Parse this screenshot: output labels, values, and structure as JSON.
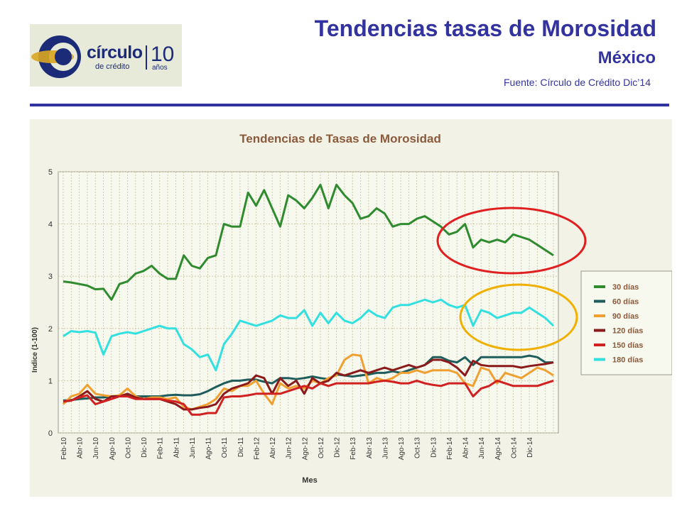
{
  "slide": {
    "title": "Tendencias tasas de Morosidad",
    "subtitle": "México",
    "source": "Fuente: Círculo de Crédito Dic’14"
  },
  "logo": {
    "name": "círculo",
    "sub": "de crédito",
    "number": "10",
    "years": "años"
  },
  "chart_data": {
    "type": "line",
    "title": "Tendencias de Tasas de Morosidad",
    "xlabel": "Mes",
    "ylabel": "Indice (1-100)",
    "ylim": [
      0,
      5
    ],
    "yticks": [
      0,
      1,
      2,
      3,
      4,
      5
    ],
    "grid": true,
    "legend_position": "right",
    "x_tick_labels": [
      "Feb-10",
      "Abr-10",
      "Jun-10",
      "Ago-10",
      "Oct-10",
      "Dic-10",
      "Feb-11",
      "Abr-11",
      "Jun-11",
      "Ago-11",
      "Oct-11",
      "Dic-11",
      "Feb-12",
      "Abr-12",
      "Jun-12",
      "Ago-12",
      "Oct-12",
      "Dic-12",
      "Feb-13",
      "Abr-13",
      "Jun-13",
      "Ago-13",
      "Oct-13",
      "Dic-13",
      "Feb-14",
      "Abr-14",
      "Jun-14",
      "Ago-14",
      "Oct-14",
      "Dic-14"
    ],
    "series": [
      {
        "name": "30 días",
        "color": "#2e8b2e",
        "values": [
          2.9,
          2.88,
          2.85,
          2.82,
          2.75,
          2.76,
          2.55,
          2.85,
          2.9,
          3.05,
          3.1,
          3.2,
          3.05,
          2.95,
          2.95,
          3.4,
          3.2,
          3.15,
          3.35,
          3.4,
          4.0,
          3.95,
          3.95,
          4.6,
          4.35,
          4.65,
          4.3,
          3.95,
          4.55,
          4.45,
          4.3,
          4.5,
          4.75,
          4.3,
          4.75,
          4.55,
          4.4,
          4.1,
          4.15,
          4.3,
          4.2,
          3.95,
          4.0,
          4.0,
          4.1,
          4.15,
          4.05,
          3.95,
          3.8,
          3.85,
          4.0,
          3.55,
          3.7,
          3.65,
          3.7,
          3.65,
          3.8,
          3.75,
          3.7,
          3.6,
          3.5,
          3.4
        ]
      },
      {
        "name": "60 días",
        "color": "#1f5c5c",
        "values": [
          0.62,
          0.63,
          0.65,
          0.66,
          0.68,
          0.68,
          0.7,
          0.72,
          0.72,
          0.7,
          0.7,
          0.7,
          0.7,
          0.72,
          0.73,
          0.72,
          0.72,
          0.74,
          0.8,
          0.88,
          0.95,
          1.0,
          1.0,
          1.02,
          1.02,
          0.98,
          0.95,
          1.05,
          1.05,
          1.03,
          1.05,
          1.08,
          1.05,
          1.03,
          1.12,
          1.1,
          1.08,
          1.1,
          1.12,
          1.15,
          1.15,
          1.18,
          1.15,
          1.2,
          1.25,
          1.3,
          1.45,
          1.45,
          1.38,
          1.35,
          1.45,
          1.3,
          1.45,
          1.45,
          1.45,
          1.45,
          1.45,
          1.45,
          1.48,
          1.45,
          1.35,
          1.35
        ]
      },
      {
        "name": "90 días",
        "color": "#f0a030",
        "values": [
          0.55,
          0.7,
          0.75,
          0.92,
          0.75,
          0.72,
          0.7,
          0.72,
          0.85,
          0.7,
          0.65,
          0.68,
          0.68,
          0.65,
          0.68,
          0.5,
          0.45,
          0.5,
          0.55,
          0.65,
          0.85,
          0.8,
          0.9,
          0.9,
          1.0,
          0.75,
          0.55,
          0.95,
          0.85,
          0.9,
          0.85,
          1.0,
          0.95,
          1.05,
          1.1,
          1.4,
          1.5,
          1.48,
          0.95,
          1.05,
          1.0,
          1.05,
          1.15,
          1.15,
          1.2,
          1.15,
          1.2,
          1.2,
          1.2,
          1.15,
          0.95,
          0.9,
          1.25,
          1.2,
          0.95,
          1.15,
          1.1,
          1.05,
          1.15,
          1.25,
          1.2,
          1.1
        ]
      },
      {
        "name": "120 días",
        "color": "#8b1a1a",
        "values": [
          0.6,
          0.62,
          0.7,
          0.8,
          0.65,
          0.6,
          0.7,
          0.7,
          0.75,
          0.68,
          0.65,
          0.65,
          0.65,
          0.6,
          0.55,
          0.45,
          0.45,
          0.48,
          0.5,
          0.55,
          0.75,
          0.85,
          0.9,
          0.95,
          1.1,
          1.05,
          0.75,
          1.05,
          0.9,
          1.0,
          0.75,
          1.05,
          0.95,
          1.0,
          1.15,
          1.1,
          1.15,
          1.2,
          1.15,
          1.2,
          1.25,
          1.2,
          1.25,
          1.3,
          1.25,
          1.3,
          1.4,
          1.4,
          1.35,
          1.25,
          1.1,
          1.38,
          1.3,
          1.28,
          1.28,
          1.28,
          1.28,
          1.25,
          1.28,
          1.3,
          1.32,
          1.35
        ]
      },
      {
        "name": "150 días",
        "color": "#d02020",
        "values": [
          0.6,
          0.62,
          0.68,
          0.72,
          0.55,
          0.6,
          0.65,
          0.7,
          0.7,
          0.65,
          0.65,
          0.65,
          0.65,
          0.62,
          0.6,
          0.55,
          0.35,
          0.35,
          0.38,
          0.38,
          0.68,
          0.7,
          0.7,
          0.72,
          0.75,
          0.75,
          0.75,
          0.75,
          0.8,
          0.85,
          0.9,
          0.85,
          0.95,
          0.9,
          0.95,
          0.95,
          0.95,
          0.95,
          0.95,
          0.98,
          1.0,
          0.98,
          0.95,
          0.95,
          1.0,
          0.95,
          0.92,
          0.9,
          0.95,
          0.95,
          0.95,
          0.7,
          0.85,
          0.9,
          1.0,
          0.95,
          0.9,
          0.9,
          0.9,
          0.9,
          0.95,
          1.0
        ]
      },
      {
        "name": "180 días",
        "color": "#33e0e0",
        "values": [
          1.85,
          1.95,
          1.93,
          1.95,
          1.92,
          1.5,
          1.85,
          1.9,
          1.93,
          1.9,
          1.95,
          2.0,
          2.05,
          2.0,
          2.0,
          1.7,
          1.6,
          1.45,
          1.5,
          1.2,
          1.7,
          1.9,
          2.15,
          2.1,
          2.05,
          2.1,
          2.15,
          2.25,
          2.2,
          2.2,
          2.35,
          2.05,
          2.3,
          2.1,
          2.3,
          2.15,
          2.1,
          2.2,
          2.35,
          2.25,
          2.2,
          2.4,
          2.45,
          2.45,
          2.5,
          2.55,
          2.5,
          2.55,
          2.45,
          2.4,
          2.45,
          2.05,
          2.35,
          2.3,
          2.2,
          2.25,
          2.3,
          2.3,
          2.4,
          2.3,
          2.2,
          2.05
        ]
      }
    ],
    "annotations": [
      {
        "shape": "ellipse",
        "color": "#e02020",
        "around": "30 días, Feb-14 to Dic-14"
      },
      {
        "shape": "ellipse",
        "color": "#f0b000",
        "around": "180 días, Feb-14 to Dic-14"
      }
    ]
  }
}
